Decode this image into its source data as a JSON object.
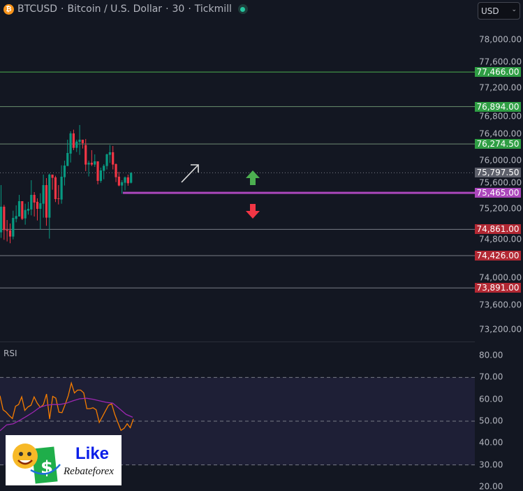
{
  "header": {
    "symbol": "BTCUSD",
    "name": "Bitcoin / U.S. Dollar",
    "interval": "30",
    "broker": "Tickmill",
    "separator": "·",
    "icon": "bitcoin-icon",
    "status": "market-open-dot"
  },
  "currency_select": {
    "value": "USD"
  },
  "price_axis": {
    "ticks": [
      "78,000.00",
      "77,600.00",
      "77,200.00",
      "76,800.00",
      "76,400.00",
      "76,000.00",
      "75,600.00",
      "75,200.00",
      "74,800.00",
      "74,000.00",
      "73,600.00",
      "73,200.00"
    ],
    "tick_values": [
      78000,
      77600,
      77200,
      76800,
      76400,
      76000,
      75600,
      75200,
      74800,
      74000,
      73600,
      73200
    ]
  },
  "levels": [
    {
      "value": 77466,
      "label": "77,466.00",
      "color": "#2f9e44",
      "line": "#4caf50"
    },
    {
      "value": 76894,
      "label": "76,894.00",
      "color": "#2f9e44",
      "line": "#6a8f6e"
    },
    {
      "value": 76274.5,
      "label": "76,274.50",
      "color": "#2f9e44",
      "line": "#6f8a72"
    },
    {
      "value": 75465,
      "label": "75,465.00",
      "color": "#ab47bc",
      "line": "#ab47bc"
    },
    {
      "value": 74861,
      "label": "74,861.00",
      "color": "#b22833",
      "line": "#7a7d86"
    },
    {
      "value": 74426,
      "label": "74,426.00",
      "color": "#b22833",
      "line": "#7a7d86"
    },
    {
      "value": 73891,
      "label": "73,891.00",
      "color": "#b22833",
      "line": "#7a7d86"
    }
  ],
  "last_price": {
    "value": 75797.5,
    "label": "75,797.50",
    "color": "#5d606b"
  },
  "candles": [
    [
      74812,
      75594,
      74719,
      75236
    ],
    [
      75236,
      75267,
      74688,
      74850
    ],
    [
      74850,
      75016,
      74661,
      74835
    ],
    [
      74843,
      74958,
      74631,
      74742
    ],
    [
      74742,
      75170,
      74696,
      75051
    ],
    [
      75035,
      75259,
      74978,
      75082
    ],
    [
      75074,
      75432,
      75074,
      75328
    ],
    [
      75328,
      75328,
      75016,
      75035
    ],
    [
      75043,
      75286,
      74939,
      75182
    ],
    [
      75170,
      75317,
      75105,
      75201
    ],
    [
      75190,
      75675,
      75093,
      75432
    ],
    [
      75432,
      75479,
      75074,
      75305
    ],
    [
      75317,
      75375,
      75008,
      75201
    ],
    [
      75201,
      75459,
      74854,
      75294
    ],
    [
      75286,
      75768,
      75055,
      75594
    ],
    [
      75594,
      75710,
      74920,
      75055
    ],
    [
      75055,
      75787,
      74708,
      75768
    ],
    [
      75768,
      75768,
      75517,
      75714
    ],
    [
      75722,
      75749,
      75313,
      75363
    ],
    [
      75375,
      75594,
      75274,
      75367
    ],
    [
      75355,
      75922,
      75286,
      75733
    ],
    [
      75725,
      75999,
      75587,
      75918
    ],
    [
      75910,
      76346,
      75910,
      76126
    ],
    [
      76115,
      76485,
      75968,
      76450
    ],
    [
      76450,
      76512,
      76173,
      76211
    ],
    [
      76211,
      76346,
      76142,
      76315
    ],
    [
      76308,
      76589,
      76095,
      76346
    ],
    [
      76346,
      76346,
      76200,
      76288
    ],
    [
      76257,
      76358,
      75826,
      75934
    ],
    [
      75934,
      75999,
      75737,
      75964
    ],
    [
      75964,
      76173,
      75910,
      75934
    ],
    [
      75934,
      76103,
      75895,
      75988
    ],
    [
      75988,
      75988,
      75606,
      75664
    ],
    [
      75664,
      75883,
      75633,
      75837
    ],
    [
      75830,
      75941,
      75691,
      75914
    ],
    [
      75910,
      76115,
      75853,
      76103
    ],
    [
      76095,
      76257,
      75961,
      76138
    ],
    [
      76138,
      76242,
      75853,
      75934
    ],
    [
      75941,
      75953,
      75644,
      75725
    ],
    [
      75733,
      75814,
      75575,
      75587
    ],
    [
      75587,
      75675,
      75452,
      75641
    ],
    [
      75633,
      75737,
      75506,
      75722
    ],
    [
      75722,
      75768,
      75583,
      75625
    ],
    [
      75633,
      75806,
      75621,
      75797.5
    ]
  ],
  "colors": {
    "up": "#089981",
    "down": "#f23645",
    "background": "#131722",
    "rsi": "#f57c00",
    "rsi_ma": "#9c27b0",
    "rsi_band": "#1e1f36"
  },
  "annotations": {
    "arrow_up": "green-up-arrow",
    "arrow_down": "red-down-arrow",
    "trend_arrow": "white-diagonal-arrow"
  },
  "rsi": {
    "label": "RSI",
    "ticks": [
      "80.00",
      "70.00",
      "60.00",
      "50.00",
      "40.00",
      "30.00",
      "20.00"
    ],
    "tick_values": [
      80,
      70,
      60,
      50,
      40,
      30,
      20
    ],
    "band": [
      30,
      70
    ],
    "values": [
      61.6,
      55.2,
      54.1,
      52.5,
      51.2,
      56.8,
      57.6,
      61.1,
      54.9,
      56.5,
      57.3,
      61.1,
      58.2,
      56.3,
      57.6,
      62.4,
      51.0,
      61.3,
      60.5,
      54.1,
      53.9,
      57.6,
      61.6,
      67.4,
      62.9,
      64.2,
      64.2,
      62.9,
      55.7,
      55.7,
      56.1,
      55.2,
      49.4,
      52.0,
      54.7,
      57.3,
      57.9,
      53.1,
      49.4,
      45.8,
      46.7,
      48.8,
      47.0,
      51.0
    ],
    "ma": [
      45.6,
      48.3,
      48.8,
      50.4,
      52.2,
      54.1,
      56.3,
      57.3,
      57.6,
      57.6,
      58.2,
      59.3,
      60.2,
      60.5,
      60.0,
      59.3,
      58.6,
      58.2,
      55.7,
      53.1,
      51.8
    ]
  },
  "logo": {
    "line1": "Like",
    "line2": "Rebateforex"
  }
}
